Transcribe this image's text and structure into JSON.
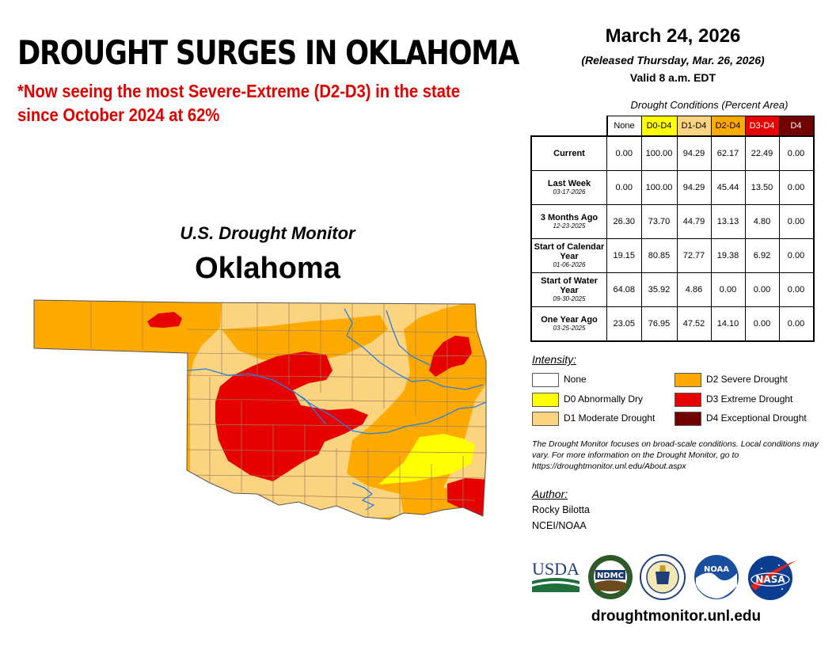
{
  "headline": "DROUGHT SURGES IN OKLAHOMA",
  "subheadline": "*Now seeing the most Severe-Extreme (D2-D3) in the state since October 2024 at 62%",
  "map": {
    "program_title": "U.S. Drought Monitor",
    "state_name": "Oklahoma",
    "colors": {
      "none": "#ffffff",
      "D0": "#ffff00",
      "D1": "#fcd37f",
      "D2": "#ffaa00",
      "D3": "#e60000",
      "D4": "#730000",
      "water": "#2a7de1",
      "county_line": "#9a8060"
    }
  },
  "release": {
    "date": "March 24, 2026",
    "released": "(Released Thursday, Mar. 26, 2026)",
    "valid": "Valid 8 a.m. EDT"
  },
  "conditions_table": {
    "title": "Drought Conditions (Percent Area)",
    "columns": [
      "None",
      "D0-D4",
      "D1-D4",
      "D2-D4",
      "D3-D4",
      "D4"
    ],
    "rows": [
      {
        "label": "Current",
        "date": "",
        "values": [
          "0.00",
          "100.00",
          "94.29",
          "62.17",
          "22.49",
          "0.00"
        ]
      },
      {
        "label": "Last Week",
        "date": "03-17-2026",
        "values": [
          "0.00",
          "100.00",
          "94.29",
          "45.44",
          "13.50",
          "0.00"
        ]
      },
      {
        "label": "3 Months Ago",
        "date": "12-23-2025",
        "values": [
          "26.30",
          "73.70",
          "44.79",
          "13.13",
          "4.80",
          "0.00"
        ]
      },
      {
        "label": "Start of Calendar Year",
        "date": "01-06-2026",
        "values": [
          "19.15",
          "80.85",
          "72.77",
          "19.38",
          "6.92",
          "0.00"
        ]
      },
      {
        "label": "Start of Water Year",
        "date": "09-30-2025",
        "values": [
          "64.08",
          "35.92",
          "4.86",
          "0.00",
          "0.00",
          "0.00"
        ]
      },
      {
        "label": "One Year Ago",
        "date": "03-25-2025",
        "values": [
          "23.05",
          "76.95",
          "47.52",
          "14.10",
          "0.00",
          "0.00"
        ]
      }
    ]
  },
  "legend": {
    "title": "Intensity:",
    "items": [
      {
        "label": "None",
        "color": "#ffffff"
      },
      {
        "label": "D0 Abnormally Dry",
        "color": "#ffff00"
      },
      {
        "label": "D1 Moderate Drought",
        "color": "#fcd37f"
      },
      {
        "label": "D2 Severe Drought",
        "color": "#ffaa00"
      },
      {
        "label": "D3 Extreme Drought",
        "color": "#e60000"
      },
      {
        "label": "D4 Exceptional Drought",
        "color": "#730000"
      }
    ]
  },
  "note": "The Drought Monitor focuses on broad-scale conditions. Local conditions may vary. For more information on the Drought Monitor, go to https://droughtmonitor.unl.edu/About.aspx",
  "author": {
    "title": "Author:",
    "name": "Rocky Bilotta",
    "org": "NCEI/NOAA"
  },
  "logos": {
    "usda": "USDA",
    "ndmc": "NDMC",
    "noaa": "NOAA",
    "nasa": "NASA",
    "icons": [
      "usda-logo",
      "ndmc-logo",
      "commerce-seal-logo",
      "noaa-logo",
      "nasa-logo"
    ]
  },
  "website": "droughtmonitor.unl.edu"
}
